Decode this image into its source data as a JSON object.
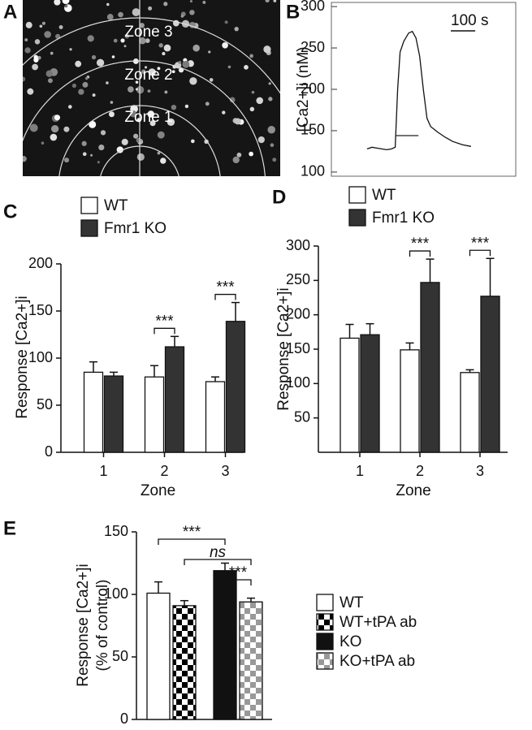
{
  "image_panel": {
    "panel": "A",
    "labels": [
      "Zone 3",
      "Zone 2",
      "Zone 1"
    ]
  },
  "chart_data": [
    {
      "type": "line",
      "panel": "B",
      "ylabel": "[Ca2+]i (nM)",
      "ylim": [
        95,
        305
      ],
      "yticks": [
        100,
        150,
        200,
        250,
        300
      ],
      "xlim": [
        -146,
        608
      ],
      "x": [
        0,
        20,
        40,
        60,
        80,
        100,
        115,
        125,
        135,
        150,
        170,
        185,
        200,
        215,
        230,
        245,
        260,
        290,
        320,
        350,
        390,
        425
      ],
      "series": [
        {
          "name": null,
          "color": "#111111",
          "values": [
            128,
            130,
            129,
            128,
            127,
            128,
            130,
            200,
            245,
            258,
            268,
            270,
            262,
            240,
            200,
            165,
            155,
            148,
            142,
            137,
            133,
            131
          ]
        }
      ],
      "stimulus": [
        115,
        210
      ],
      "scale_bar": {
        "value": 100,
        "label": "100 s"
      }
    },
    {
      "type": "bar",
      "panel": "C",
      "ylabel": "Response [Ca2+]i",
      "xlabel": "Zone",
      "categories": [
        "1",
        "2",
        "3"
      ],
      "ylim": [
        0,
        200
      ],
      "yticks": [
        0,
        50,
        100,
        150,
        200
      ],
      "series": [
        {
          "name": "WT",
          "color": "#ffffff",
          "values": [
            85,
            80,
            75
          ],
          "errors": [
            11,
            12,
            5
          ]
        },
        {
          "name": "Fmr1 KO",
          "color": "#333333",
          "values": [
            81,
            112,
            139
          ],
          "errors": [
            4,
            11,
            20
          ]
        }
      ],
      "significance": [
        {
          "category": "2",
          "text": "***"
        },
        {
          "category": "3",
          "text": "***"
        }
      ]
    },
    {
      "type": "bar",
      "panel": "D",
      "ylabel": "Response [Ca2+]i",
      "xlabel": "Zone",
      "categories": [
        "1",
        "2",
        "3"
      ],
      "ylim": [
        0,
        300
      ],
      "yticks": [
        50,
        100,
        150,
        200,
        250,
        300
      ],
      "series": [
        {
          "name": "WT",
          "color": "#ffffff",
          "values": [
            166,
            149,
            116
          ],
          "errors": [
            20,
            10,
            4
          ]
        },
        {
          "name": "Fmr1 KO",
          "color": "#333333",
          "values": [
            171,
            247,
            227
          ],
          "errors": [
            16,
            34,
            55
          ]
        }
      ],
      "significance": [
        {
          "category": "2",
          "text": "***"
        },
        {
          "category": "3",
          "text": "***"
        }
      ]
    },
    {
      "type": "bar",
      "panel": "E",
      "ylabel": [
        "Response [Ca2+]i",
        "(% of control)"
      ],
      "categories": [
        null
      ],
      "ylim": [
        0,
        150
      ],
      "yticks": [
        0,
        50,
        100,
        150
      ],
      "series": [
        {
          "name": "WT",
          "color": "#ffffff",
          "values": [
            101
          ],
          "errors": [
            9
          ]
        },
        {
          "name": "WT+tPA ab",
          "color": "#000000",
          "pattern": "checker",
          "values": [
            91
          ],
          "errors": [
            4
          ]
        },
        {
          "name": "KO",
          "color": "#111111",
          "values": [
            119
          ],
          "errors": [
            6
          ]
        },
        {
          "name": "KO+tPA ab",
          "color": "#999999",
          "pattern": "checker",
          "values": [
            94
          ],
          "errors": [
            3
          ]
        }
      ],
      "significance": [
        {
          "from": "WT",
          "to": "KO",
          "text": "***"
        },
        {
          "from": "WT+tPA ab",
          "to": "KO+tPA ab",
          "text": "ns"
        },
        {
          "from": "KO",
          "to": "KO+tPA ab",
          "text": "***"
        }
      ]
    }
  ]
}
